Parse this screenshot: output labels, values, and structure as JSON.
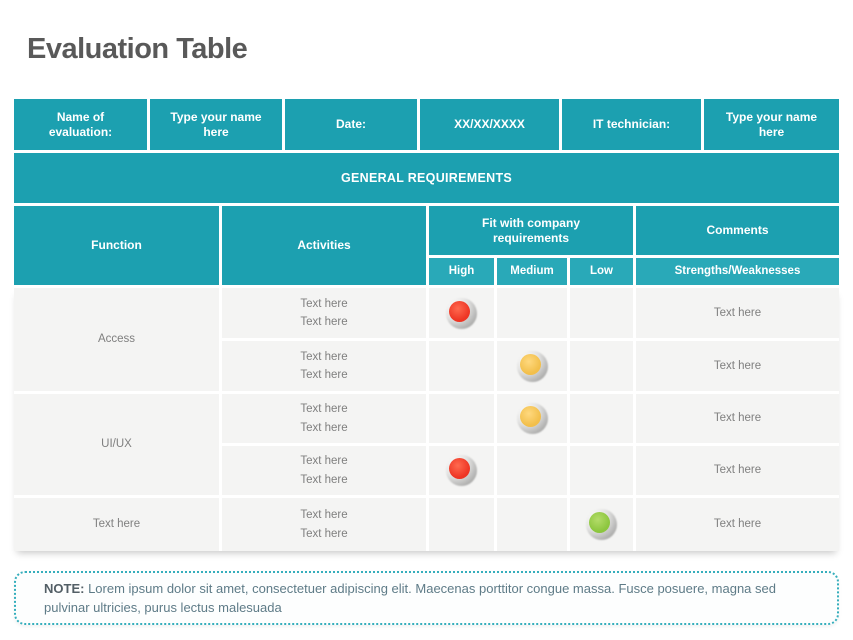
{
  "page": {
    "title": "Evaluation Table"
  },
  "colors": {
    "teal": "#1CA0B0",
    "teal-light": "#29A9B8",
    "high": "#EE3524",
    "medium": "#F2BF4B",
    "low": "#8CC63E"
  },
  "info_header": {
    "cells": [
      "Name of evaluation:",
      "Type your name here",
      "Date:",
      "XX/XX/XXXX",
      "IT technician:",
      "Type your name here"
    ]
  },
  "section_banner": "GENERAL REQUIREMENTS",
  "table": {
    "headers": {
      "function": "Function",
      "activities": "Activities",
      "fit": "Fit with company requirements",
      "comments": "Comments",
      "high": "High",
      "medium": "Medium",
      "low": "Low",
      "strengths": "Strengths/Weaknesses"
    },
    "groups": [
      {
        "function": "Access",
        "rows": [
          {
            "activities": [
              "Text here",
              "Text here"
            ],
            "rating": "high",
            "comment": "Text here"
          },
          {
            "activities": [
              "Text here",
              "Text here"
            ],
            "rating": "medium",
            "comment": "Text here"
          }
        ]
      },
      {
        "function": "UI/UX",
        "rows": [
          {
            "activities": [
              "Text here",
              "Text here"
            ],
            "rating": "medium",
            "comment": "Text here"
          },
          {
            "activities": [
              "Text here",
              "Text here"
            ],
            "rating": "high",
            "comment": "Text here"
          }
        ]
      },
      {
        "function": "Text here",
        "rows": [
          {
            "activities": [
              "Text here",
              "Text here"
            ],
            "rating": "low",
            "comment": "Text here"
          }
        ]
      }
    ]
  },
  "note": {
    "label": "NOTE:",
    "text": "Lorem ipsum dolor sit amet, consectetuer adipiscing elit. Maecenas porttitor congue massa. Fusce posuere, magna sed pulvinar ultricies, purus lectus malesuada"
  }
}
